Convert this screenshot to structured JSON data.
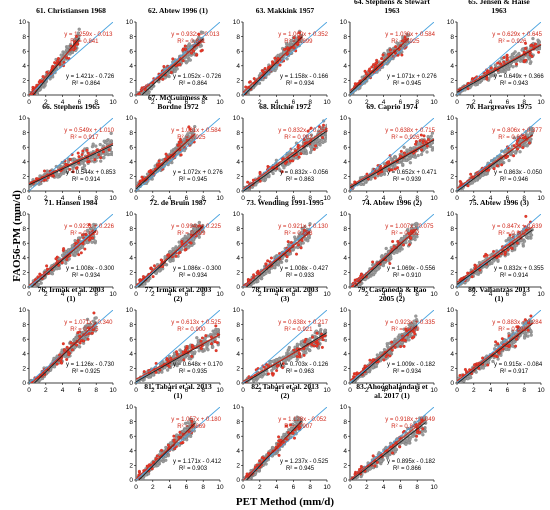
{
  "figure": {
    "x_label": "PET Method (mm/d)",
    "y_label": "FAO56-PM (mm/d)"
  },
  "colors": {
    "gray_points": "#9a9a9a",
    "red_points": "#e83a2a",
    "red_fit": "#d42a1a",
    "black_fit": "#222222",
    "one_to_one": "#4aa3df",
    "red_text": "#d0281b"
  },
  "chart_data": [
    {
      "type": "scatter",
      "title": "61. Christiansen 1968",
      "xlim": [
        0,
        10
      ],
      "ylim": [
        0,
        10
      ],
      "x_ticks": [
        0,
        2,
        4,
        6,
        8,
        10
      ],
      "y_ticks": [
        0,
        2,
        4,
        6,
        8,
        10
      ],
      "series": [
        {
          "name": "red",
          "equation": "y = 1.259x - 0.013",
          "r2": "R² = 0.841",
          "slope": 1.259,
          "intercept": -0.013
        },
        {
          "name": "black",
          "equation": "y = 1.421x - 0.726",
          "r2": "R² = 0.864",
          "slope": 1.421,
          "intercept": -0.726
        }
      ],
      "xmax": 6.0
    },
    {
      "type": "scatter",
      "title": "62. Abtew 1996 (1)",
      "xlim": [
        0,
        10
      ],
      "ylim": [
        0,
        10
      ],
      "x_ticks": [
        0,
        2,
        4,
        6,
        8,
        10
      ],
      "y_ticks": [
        0,
        2,
        4,
        6,
        8,
        10
      ],
      "series": [
        {
          "name": "red",
          "equation": "y = 0.932x - 0.013",
          "r2": "R² = 0.841",
          "slope": 0.932,
          "intercept": -0.013
        },
        {
          "name": "black",
          "equation": "y = 1.052x - 0.726",
          "r2": "R² = 0.864",
          "slope": 1.052,
          "intercept": -0.726
        }
      ],
      "xmax": 8.0
    },
    {
      "type": "scatter",
      "title": "63. Makkink 1957",
      "xlim": [
        0,
        10
      ],
      "ylim": [
        0,
        10
      ],
      "x_ticks": [
        0,
        2,
        4,
        6,
        8,
        10
      ],
      "y_ticks": [
        0,
        2,
        4,
        6,
        8,
        10
      ],
      "series": [
        {
          "name": "red",
          "equation": "y = 1.060x + 0.352",
          "r2": "R² = 0.899",
          "slope": 1.06,
          "intercept": 0.352
        },
        {
          "name": "black",
          "equation": "y = 1.158x - 0.166",
          "r2": "R² = 0.934",
          "slope": 1.158,
          "intercept": -0.166
        }
      ],
      "xmax": 7.0
    },
    {
      "type": "scatter",
      "title": "64. Stephens & Stewart 1963",
      "xlim": [
        0,
        10
      ],
      "ylim": [
        0,
        10
      ],
      "x_ticks": [
        0,
        2,
        4,
        6,
        8,
        10
      ],
      "y_ticks": [
        0,
        2,
        4,
        6,
        8,
        10
      ],
      "series": [
        {
          "name": "red",
          "equation": "y = 1.030x + 0.584",
          "r2": "R² = 0.925",
          "slope": 1.03,
          "intercept": 0.584
        },
        {
          "name": "black",
          "equation": "y = 1.071x + 0.276",
          "r2": "R² = 0.945",
          "slope": 1.071,
          "intercept": 0.276
        }
      ],
      "xmax": 7.0
    },
    {
      "type": "scatter",
      "title": "65. Jensen & Haise 1963",
      "xlim": [
        0,
        10
      ],
      "ylim": [
        0,
        10
      ],
      "x_ticks": [
        0,
        2,
        4,
        6,
        8,
        10
      ],
      "y_ticks": [
        0,
        2,
        4,
        6,
        8,
        10
      ],
      "series": [
        {
          "name": "red",
          "equation": "y = 0.629x + 0.645",
          "r2": "R² = 0.926",
          "slope": 0.629,
          "intercept": 0.645
        },
        {
          "name": "black",
          "equation": "y = 0.649x + 0.366",
          "r2": "R² = 0.943",
          "slope": 0.649,
          "intercept": 0.366
        }
      ],
      "xmax": 10.0
    },
    {
      "type": "scatter",
      "title": "66. Stephens 1965",
      "xlim": [
        0,
        10
      ],
      "ylim": [
        0,
        10
      ],
      "x_ticks": [
        0,
        2,
        4,
        6,
        8,
        10
      ],
      "y_ticks": [
        0,
        2,
        4,
        6,
        8,
        10
      ],
      "series": [
        {
          "name": "red",
          "equation": "y = 0.549x + 1.010",
          "r2": "R² = 0.917",
          "slope": 0.549,
          "intercept": 1.01
        },
        {
          "name": "black",
          "equation": "y = 0.544x + 0.853",
          "r2": "R² = 0.914",
          "slope": 0.544,
          "intercept": 0.853
        }
      ],
      "xmax": 10.0
    },
    {
      "type": "scatter",
      "title": "67. McGuinness & Bordne 1972",
      "xlim": [
        0,
        10
      ],
      "ylim": [
        0,
        10
      ],
      "x_ticks": [
        0,
        2,
        4,
        6,
        8,
        10
      ],
      "y_ticks": [
        0,
        2,
        4,
        6,
        8,
        10
      ],
      "series": [
        {
          "name": "red",
          "equation": "y = 1.031x + 0.584",
          "r2": "R² = 0.925",
          "slope": 1.031,
          "intercept": 0.584
        },
        {
          "name": "black",
          "equation": "y = 1.072x + 0.276",
          "r2": "R² = 0.945",
          "slope": 1.072,
          "intercept": 0.276
        }
      ],
      "xmax": 7.0
    },
    {
      "type": "scatter",
      "title": "68. Ritchie 1972",
      "xlim": [
        0,
        10
      ],
      "ylim": [
        0,
        10
      ],
      "x_ticks": [
        0,
        2,
        4,
        6,
        8,
        10
      ],
      "y_ticks": [
        0,
        2,
        4,
        6,
        8,
        10
      ],
      "series": [
        {
          "name": "red",
          "equation": "y = 0.832x + 0.258",
          "r2": "R² = 0.902",
          "slope": 0.832,
          "intercept": 0.258
        },
        {
          "name": "black",
          "equation": "y = 0.832x - 0.056",
          "r2": "R² = 0.863",
          "slope": 0.832,
          "intercept": -0.056
        }
      ],
      "xmax": 10.0
    },
    {
      "type": "scatter",
      "title": "69. Caprio 1974",
      "xlim": [
        0,
        10
      ],
      "ylim": [
        0,
        10
      ],
      "x_ticks": [
        0,
        2,
        4,
        6,
        8,
        10
      ],
      "y_ticks": [
        0,
        2,
        4,
        6,
        8,
        10
      ],
      "series": [
        {
          "name": "red",
          "equation": "y = 0.638x + 0.715",
          "r2": "R² = 0.926",
          "slope": 0.638,
          "intercept": 0.715
        },
        {
          "name": "black",
          "equation": "y = 0.652x + 0.471",
          "r2": "R² = 0.939",
          "slope": 0.652,
          "intercept": 0.471
        }
      ],
      "xmax": 10.0
    },
    {
      "type": "scatter",
      "title": "70. Hargreaves 1975",
      "xlim": [
        0,
        10
      ],
      "ylim": [
        0,
        10
      ],
      "x_ticks": [
        0,
        2,
        4,
        6,
        8,
        10
      ],
      "y_ticks": [
        0,
        2,
        4,
        6,
        8,
        10
      ],
      "series": [
        {
          "name": "red",
          "equation": "y = 0.806x + 0.377",
          "r2": "R² = 0.936",
          "slope": 0.806,
          "intercept": 0.377
        },
        {
          "name": "black",
          "equation": "y = 0.863x - 0.050",
          "r2": "R² = 0.946",
          "slope": 0.863,
          "intercept": -0.05
        }
      ],
      "xmax": 9.0
    },
    {
      "type": "scatter",
      "title": "71. Hansen 1984",
      "xlim": [
        0,
        10
      ],
      "ylim": [
        0,
        10
      ],
      "x_ticks": [
        0,
        2,
        4,
        6,
        8,
        10
      ],
      "y_ticks": [
        0,
        2,
        4,
        6,
        8,
        10
      ],
      "series": [
        {
          "name": "red",
          "equation": "y = 0.923x + 0.226",
          "r2": "R² = 0.899",
          "slope": 0.923,
          "intercept": 0.226
        },
        {
          "name": "black",
          "equation": "y = 1.008x - 0.300",
          "r2": "R² = 0.934",
          "slope": 1.008,
          "intercept": -0.3
        }
      ],
      "xmax": 8.0
    },
    {
      "type": "scatter",
      "title": "72. de Bruin 1987",
      "xlim": [
        0,
        10
      ],
      "ylim": [
        0,
        10
      ],
      "x_ticks": [
        0,
        2,
        4,
        6,
        8,
        10
      ],
      "y_ticks": [
        0,
        2,
        4,
        6,
        8,
        10
      ],
      "series": [
        {
          "name": "red",
          "equation": "y = 0.994x + 0.225",
          "r2": "R² = 0.899",
          "slope": 0.994,
          "intercept": 0.225
        },
        {
          "name": "black",
          "equation": "y = 1.086x - 0.300",
          "r2": "R² = 0.934",
          "slope": 1.086,
          "intercept": -0.3
        }
      ],
      "xmax": 8.0
    },
    {
      "type": "scatter",
      "title": "73. Wendling 1991-1995",
      "xlim": [
        0,
        10
      ],
      "ylim": [
        0,
        10
      ],
      "x_ticks": [
        0,
        2,
        4,
        6,
        8,
        10
      ],
      "y_ticks": [
        0,
        2,
        4,
        6,
        8,
        10
      ],
      "series": [
        {
          "name": "red",
          "equation": "y = 0.921x + 0.130",
          "r2": "R² = 0.898",
          "slope": 0.921,
          "intercept": 0.13
        },
        {
          "name": "black",
          "equation": "y = 1.008x - 0.427",
          "r2": "R² = 0.933",
          "slope": 1.008,
          "intercept": -0.427
        }
      ],
      "xmax": 8.0
    },
    {
      "type": "scatter",
      "title": "74. Abtew 1996 (2)",
      "xlim": [
        0,
        10
      ],
      "ylim": [
        0,
        10
      ],
      "x_ticks": [
        0,
        2,
        4,
        6,
        8,
        10
      ],
      "y_ticks": [
        0,
        2,
        4,
        6,
        8,
        10
      ],
      "series": [
        {
          "name": "red",
          "equation": "y = 1.007x - 0.075",
          "r2": "R² = 0.882",
          "slope": 1.007,
          "intercept": -0.075
        },
        {
          "name": "black",
          "equation": "y = 1.069x - 0.556",
          "r2": "R² = 0.910",
          "slope": 1.069,
          "intercept": -0.556
        }
      ],
      "xmax": 8.0
    },
    {
      "type": "scatter",
      "title": "75. Abtew 1996 (3)",
      "xlim": [
        0,
        10
      ],
      "ylim": [
        0,
        10
      ],
      "x_ticks": [
        0,
        2,
        4,
        6,
        8,
        10
      ],
      "y_ticks": [
        0,
        2,
        4,
        6,
        8,
        10
      ],
      "series": [
        {
          "name": "red",
          "equation": "y = 0.847x + 0.639",
          "r2": "R² = 0.902",
          "slope": 0.847,
          "intercept": 0.639
        },
        {
          "name": "black",
          "equation": "y = 0.832x + 0.355",
          "r2": "R² = 0.914",
          "slope": 0.832,
          "intercept": 0.355
        }
      ],
      "xmax": 9.0
    },
    {
      "type": "scatter",
      "title": "76. Irmak et al. 2003 (1)",
      "xlim": [
        0,
        10
      ],
      "ylim": [
        0,
        10
      ],
      "x_ticks": [
        0,
        2,
        4,
        6,
        8,
        10
      ],
      "y_ticks": [
        0,
        2,
        4,
        6,
        8,
        10
      ],
      "series": [
        {
          "name": "red",
          "equation": "y = 1.071x - 0.340",
          "r2": "R² = 0.895",
          "slope": 1.071,
          "intercept": -0.34
        },
        {
          "name": "black",
          "equation": "y = 1.126x - 0.730",
          "r2": "R² = 0.925",
          "slope": 1.126,
          "intercept": -0.73
        }
      ],
      "xmax": 8.0
    },
    {
      "type": "scatter",
      "title": "77. Irmak et al. 2003 (2)",
      "xlim": [
        0,
        10
      ],
      "ylim": [
        0,
        10
      ],
      "x_ticks": [
        0,
        2,
        4,
        6,
        8,
        10
      ],
      "y_ticks": [
        0,
        2,
        4,
        6,
        8,
        10
      ],
      "series": [
        {
          "name": "red",
          "equation": "y = 0.613x + 0.525",
          "r2": "R² = 0.900",
          "slope": 0.613,
          "intercept": 0.525
        },
        {
          "name": "black",
          "equation": "y = 0.648x + 0.170",
          "r2": "R² = 0.935",
          "slope": 0.648,
          "intercept": 0.17
        }
      ],
      "xmax": 10.0
    },
    {
      "type": "scatter",
      "title": "78. Irmak et al. 2003 (3)",
      "xlim": [
        0,
        10
      ],
      "ylim": [
        0,
        10
      ],
      "x_ticks": [
        0,
        2,
        4,
        6,
        8,
        10
      ],
      "y_ticks": [
        0,
        2,
        4,
        6,
        8,
        10
      ],
      "series": [
        {
          "name": "red",
          "equation": "y = 0.638x + 0.217",
          "r2": "R² = 0.921",
          "slope": 0.638,
          "intercept": 0.217
        },
        {
          "name": "black",
          "equation": "y = 0.703x - 0.126",
          "r2": "R² = 0.963",
          "slope": 0.703,
          "intercept": -0.126
        }
      ],
      "xmax": 10.0
    },
    {
      "type": "scatter",
      "title": "79. Castañeda & Rao 2005 (2)",
      "xlim": [
        0,
        10
      ],
      "ylim": [
        0,
        10
      ],
      "x_ticks": [
        0,
        2,
        4,
        6,
        8,
        10
      ],
      "y_ticks": [
        0,
        2,
        4,
        6,
        8,
        10
      ],
      "series": [
        {
          "name": "red",
          "equation": "y = 0.923x + 0.335",
          "r2": "R² = 0.899",
          "slope": 0.923,
          "intercept": 0.335
        },
        {
          "name": "black",
          "equation": "y = 1.009x - 0.182",
          "r2": "R² = 0.934",
          "slope": 1.009,
          "intercept": -0.182
        }
      ],
      "xmax": 8.0
    },
    {
      "type": "scatter",
      "title": "80. Valiantzas 2013 (1)",
      "xlim": [
        0,
        10
      ],
      "ylim": [
        0,
        10
      ],
      "x_ticks": [
        0,
        2,
        4,
        6,
        8,
        10
      ],
      "y_ticks": [
        0,
        2,
        4,
        6,
        8,
        10
      ],
      "series": [
        {
          "name": "red",
          "equation": "y = 0.883x + 0.284",
          "r2": "R² = 0.891",
          "slope": 0.883,
          "intercept": 0.284
        },
        {
          "name": "black",
          "equation": "y = 0.915x - 0.084",
          "r2": "R² = 0.917",
          "slope": 0.915,
          "intercept": -0.084
        }
      ],
      "xmax": 9.0
    },
    {
      "type": "scatter",
      "title": "81. Tabari et al. 2013 (1)",
      "xlim": [
        0,
        10
      ],
      "ylim": [
        0,
        10
      ],
      "x_ticks": [
        0,
        2,
        4,
        6,
        8,
        10
      ],
      "y_ticks": [
        0,
        2,
        4,
        6,
        8,
        10
      ],
      "series": [
        {
          "name": "red",
          "equation": "y = 1.057x + 0.180",
          "r2": "R² = 0.869",
          "slope": 1.057,
          "intercept": 0.18
        },
        {
          "name": "black",
          "equation": "y = 1.171x - 0.412",
          "r2": "R² = 0.903",
          "slope": 1.171,
          "intercept": -0.412
        }
      ],
      "xmax": 7.0
    },
    {
      "type": "scatter",
      "title": "82. Tabari et al. 2013 (2)",
      "xlim": [
        0,
        10
      ],
      "ylim": [
        0,
        10
      ],
      "x_ticks": [
        0,
        2,
        4,
        6,
        8,
        10
      ],
      "y_ticks": [
        0,
        2,
        4,
        6,
        8,
        10
      ],
      "series": [
        {
          "name": "red",
          "equation": "y = 1.128x - 0.052",
          "r2": "R² = 0.907",
          "slope": 1.128,
          "intercept": -0.052
        },
        {
          "name": "black",
          "equation": "y = 1.237x - 0.525",
          "r2": "R² = 0.945",
          "slope": 1.237,
          "intercept": -0.525
        }
      ],
      "xmax": 7.0
    },
    {
      "type": "scatter",
      "title": "83. Ahooghalandari et al. 2017 (1)",
      "xlim": [
        0,
        10
      ],
      "ylim": [
        0,
        10
      ],
      "x_ticks": [
        0,
        2,
        4,
        6,
        8,
        10
      ],
      "y_ticks": [
        0,
        2,
        4,
        6,
        8,
        10
      ],
      "series": [
        {
          "name": "red",
          "equation": "y = 0.918x + 0.049",
          "r2": "R² = 0.843",
          "slope": 0.918,
          "intercept": 0.049
        },
        {
          "name": "black",
          "equation": "y = 0.895x - 0.182",
          "r2": "R² = 0.866",
          "slope": 0.895,
          "intercept": -0.182
        }
      ],
      "xmax": 9.0
    }
  ]
}
